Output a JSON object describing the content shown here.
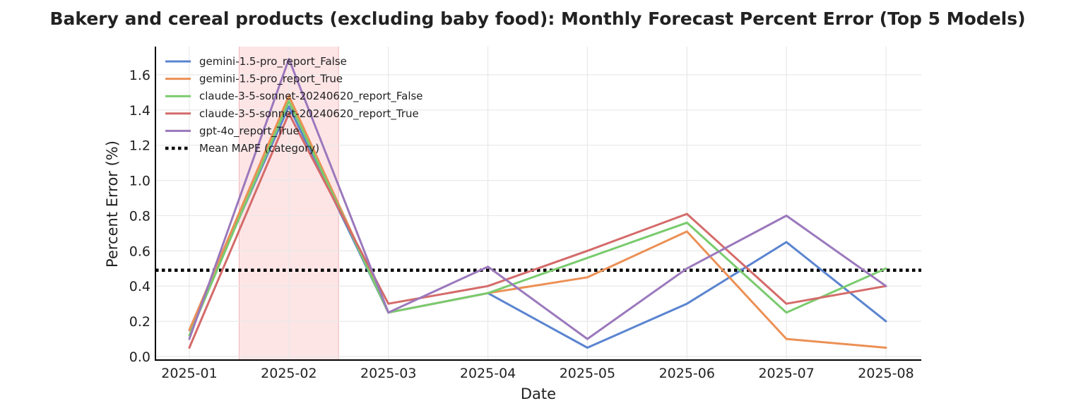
{
  "chart_data": {
    "type": "line",
    "title": "Bakery and cereal products (excluding baby food): Monthly Forecast Percent Error (Top 5 Models)",
    "xlabel": "Date",
    "ylabel": "Percent Error (%)",
    "categories": [
      "2025-01",
      "2025-02",
      "2025-03",
      "2025-04",
      "2025-05",
      "2025-06",
      "2025-07",
      "2025-08"
    ],
    "y_ticks": [
      "0.0",
      "0.2",
      "0.4",
      "0.6",
      "0.8",
      "1.0",
      "1.2",
      "1.4",
      "1.6"
    ],
    "ylim": [
      -0.02,
      1.76
    ],
    "grid": true,
    "legend_position": "top-left",
    "highlight": {
      "from": "2025-01-15",
      "to": "2025-02-15",
      "color": "#fde0e2"
    },
    "series": [
      {
        "name": "gemini-1.5-pro_report_False",
        "color": "#5a84d0",
        "values": [
          0.15,
          1.42,
          0.25,
          0.36,
          0.05,
          0.3,
          0.65,
          0.2
        ]
      },
      {
        "name": "gemini-1.5-pro_report_True",
        "color": "#ec9055",
        "values": [
          0.15,
          1.48,
          0.25,
          0.36,
          0.45,
          0.71,
          0.1,
          0.05
        ]
      },
      {
        "name": "claude-3-5-sonnet-20240620_report_False",
        "color": "#7acb6e",
        "values": [
          0.12,
          1.45,
          0.25,
          0.36,
          0.56,
          0.76,
          0.25,
          0.5
        ]
      },
      {
        "name": "claude-3-5-sonnet-20240620_report_True",
        "color": "#d46b6a",
        "values": [
          0.05,
          1.38,
          0.3,
          0.4,
          0.6,
          0.81,
          0.3,
          0.4
        ]
      },
      {
        "name": "gpt-4o_report_True",
        "color": "#9b78bc",
        "values": [
          0.1,
          1.69,
          0.25,
          0.51,
          0.1,
          0.5,
          0.8,
          0.4
        ]
      }
    ],
    "reference_line": {
      "name": "Mean MAPE (category)",
      "value": 0.49,
      "color": "#000000"
    }
  }
}
